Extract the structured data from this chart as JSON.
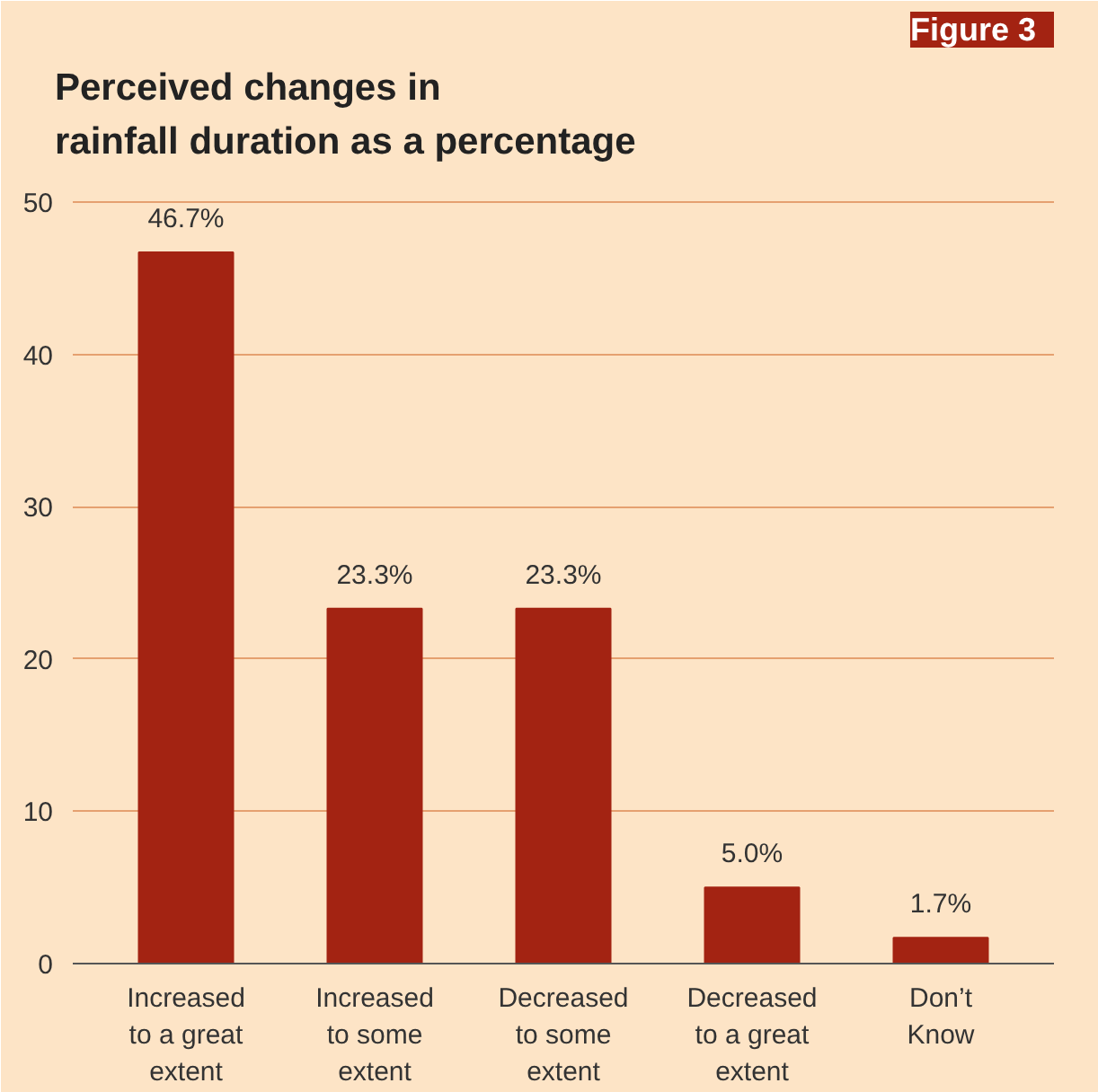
{
  "chart_data": {
    "type": "bar",
    "title": "Perceived changes in\nrainfall duration as a percentage",
    "annotations": [
      "Figure 3"
    ],
    "categories": [
      "Increased\nto a great\nextent",
      "Increased\nto some\nextent",
      "Decreased\nto some\nextent",
      "Decreased\nto a great\nextent",
      "Don’t\nKnow"
    ],
    "values": [
      46.7,
      23.3,
      23.3,
      5.0,
      1.7
    ],
    "value_labels": [
      "46.7%",
      "23.3%",
      "23.3%",
      "5.0%",
      "1.7%"
    ],
    "color": "#a32312",
    "ylim": [
      0,
      52
    ],
    "yticks": [
      0,
      10,
      20,
      30,
      40,
      50
    ],
    "grid": "y"
  }
}
